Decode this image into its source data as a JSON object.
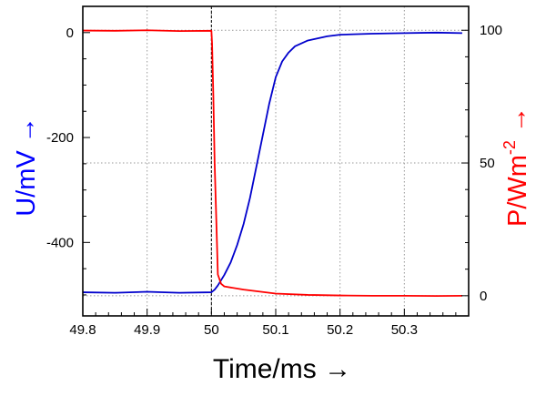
{
  "chart_data": {
    "type": "line",
    "xlabel": "Time/ms",
    "ylabel_left": "U/mV",
    "ylabel_right_base": "P/Wm",
    "ylabel_right_sup": "-2",
    "arrow": "→",
    "xlim": [
      49.8,
      50.4
    ],
    "ylim_left": [
      -540,
      50
    ],
    "ylim_right": [
      -7.6,
      109
    ],
    "x_ticks": [
      49.8,
      49.9,
      50,
      50.1,
      50.2,
      50.3
    ],
    "x_tick_labels": [
      "49.8",
      "49.9",
      "50",
      "50.1",
      "50.2",
      "50.3"
    ],
    "y_left_ticks": [
      0,
      -200,
      -400
    ],
    "y_left_tick_labels": [
      "0",
      "-200",
      "-400"
    ],
    "y_right_ticks": [
      100,
      50,
      0
    ],
    "y_right_tick_labels": [
      "100",
      "50",
      "0"
    ],
    "grid": true,
    "marker_line_x": 50,
    "colors": {
      "voltage": "#0000cc",
      "power": "#ff0000",
      "left_title": "#0000ff",
      "right_title": "#ff0000"
    },
    "series": [
      {
        "axis": "left",
        "x": [
          49.8,
          49.85,
          49.9,
          49.95,
          50.0,
          50.005,
          50.01,
          50.02,
          50.03,
          50.04,
          50.05,
          50.06,
          50.07,
          50.08,
          50.09,
          50.1,
          50.11,
          50.12,
          50.13,
          50.15,
          50.18,
          50.2,
          50.25,
          50.3,
          50.35,
          50.39
        ],
        "y": [
          -495,
          -496,
          -494,
          -496,
          -495,
          -490,
          -482,
          -462,
          -438,
          -405,
          -365,
          -315,
          -255,
          -195,
          -135,
          -85,
          -55,
          -38,
          -26,
          -15,
          -7,
          -4,
          -2,
          -1,
          0,
          -1
        ]
      },
      {
        "axis": "right",
        "x": [
          49.8,
          49.85,
          49.9,
          49.95,
          50.0,
          50.001,
          50.003,
          50.005,
          50.008,
          50.01,
          50.015,
          50.02,
          50.05,
          50.08,
          50.1,
          50.15,
          50.2,
          50.25,
          50.3,
          50.35,
          50.39
        ],
        "y": [
          99.9,
          99.8,
          100,
          99.7,
          99.8,
          95,
          75,
          50,
          25,
          8,
          4.5,
          3.5,
          2.3,
          1.4,
          0.8,
          0.3,
          0.1,
          0,
          0,
          -0.1,
          0
        ]
      }
    ]
  }
}
